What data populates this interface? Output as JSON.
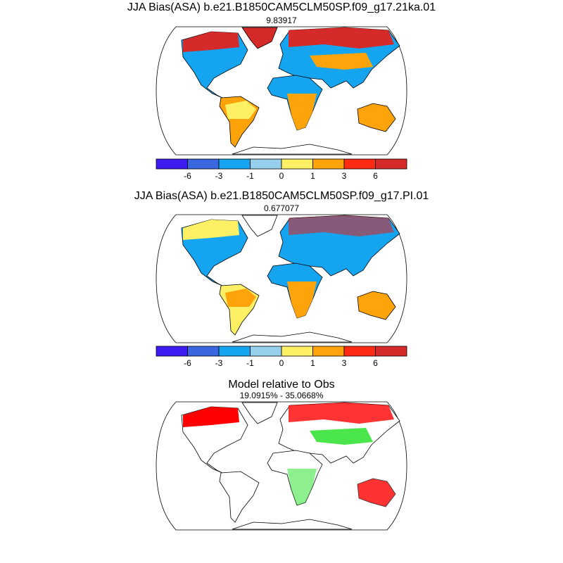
{
  "panels": [
    {
      "title": "JJA Bias(ASA) b.e21.B1850CAM5CLM50SP.f09_g17.21ka.01",
      "subtitle": "9.83917",
      "colorbar": {
        "colors": [
          "#3c1cf0",
          "#3a66e0",
          "#14a4f0",
          "#96d0ec",
          "#fef065",
          "#fea40a",
          "#fe2a14",
          "#d42a2a"
        ],
        "labels": [
          -6,
          -3,
          -1,
          0,
          1,
          3,
          6
        ]
      }
    },
    {
      "title": "JJA Bias(ASA) b.e21.B1850CAM5CLM50SP.f09_g17.PI.01",
      "subtitle": "0.677077",
      "colorbar": {
        "colors": [
          "#3c1cf0",
          "#3a66e0",
          "#14a4f0",
          "#96d0ec",
          "#fef065",
          "#fea40a",
          "#fe2a14",
          "#d42a2a"
        ],
        "labels": [
          -6,
          -3,
          -1,
          0,
          1,
          3,
          6
        ]
      }
    },
    {
      "title": "Model relative to Obs",
      "subtitle": "19.0915% - 35.0668%"
    }
  ]
}
